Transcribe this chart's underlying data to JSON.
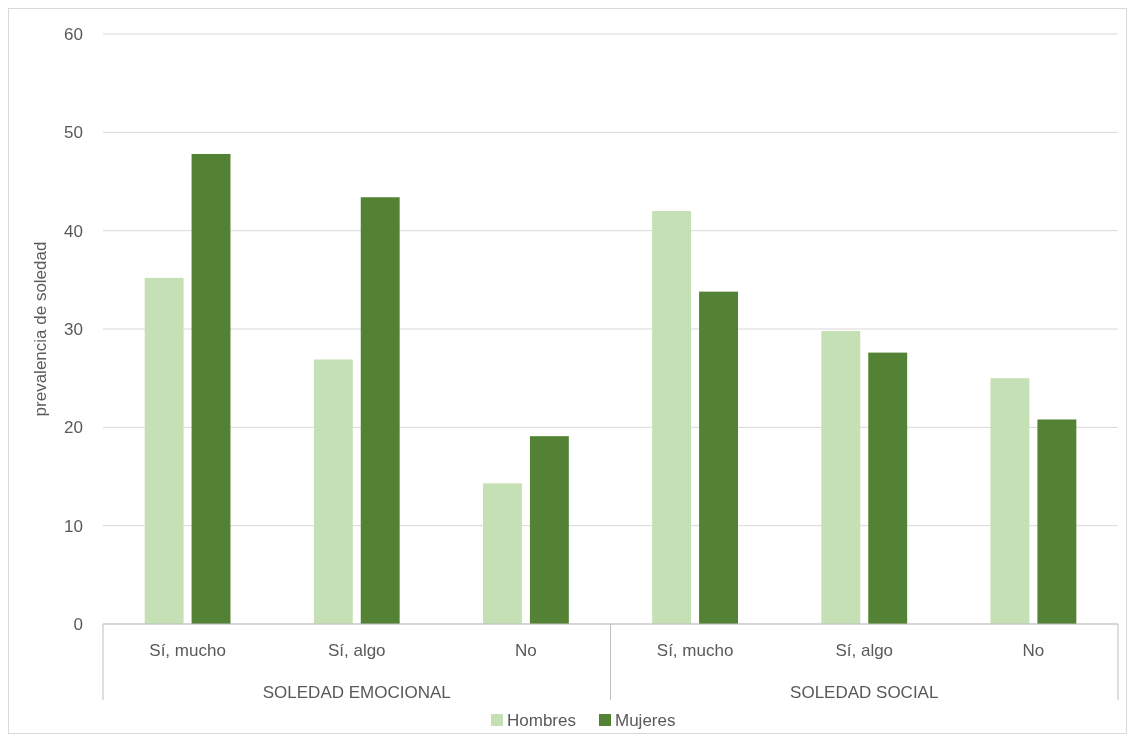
{
  "chart_data": {
    "type": "bar",
    "ylabel": "prevalencia de soledad",
    "categories": [
      "Sí, mucho",
      "Sí, algo",
      "No",
      "Sí, mucho",
      "Sí, algo",
      "No"
    ],
    "series": [
      {
        "name": "Hombres",
        "color": "#c5e0b4",
        "values": [
          35.2,
          26.9,
          14.3,
          42.0,
          29.8,
          25.0
        ]
      },
      {
        "name": "Mujeres",
        "color": "#548235",
        "values": [
          47.8,
          43.4,
          19.1,
          33.8,
          27.6,
          20.8
        ]
      }
    ],
    "annotations": [
      "SOLEDAD EMOCIONAL",
      "SOLEDAD SOCIAL"
    ],
    "ylim": [
      0,
      60
    ],
    "yticks": [
      0,
      10,
      20,
      30,
      40,
      50,
      60
    ],
    "grid": "y",
    "legend": "bottom"
  }
}
